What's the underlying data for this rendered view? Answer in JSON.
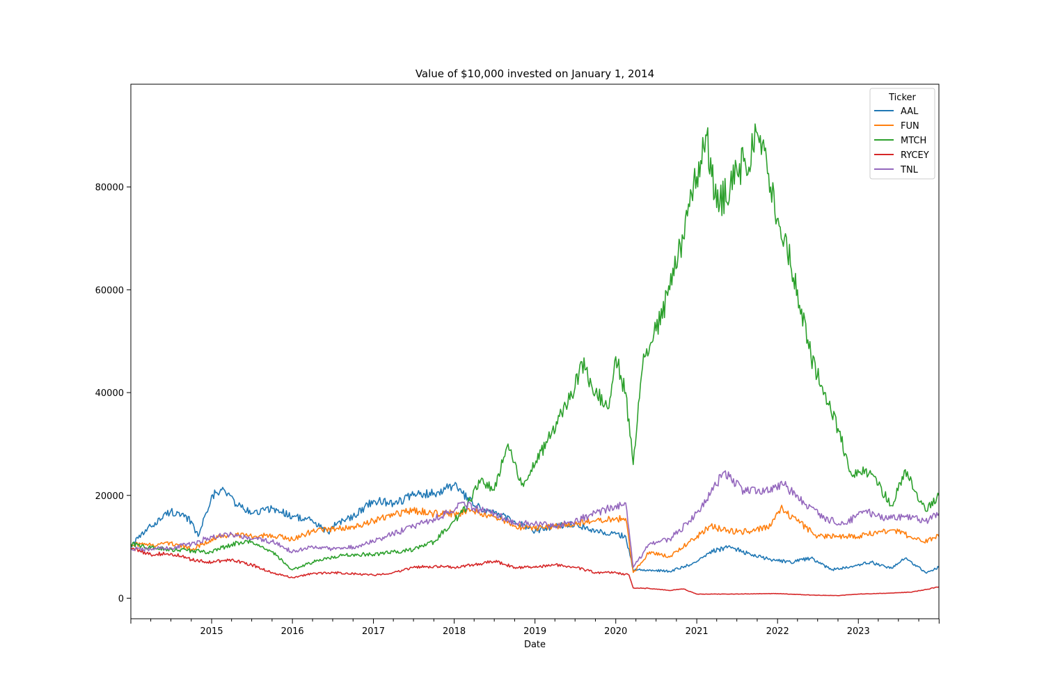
{
  "chart_data": {
    "type": "line",
    "title": "Value of $10,000 invested on January 1, 2014",
    "xlabel": "Date",
    "ylabel": "",
    "xlim": [
      "2014-01-01",
      "2023-12-31"
    ],
    "ylim": [
      -4000,
      100000
    ],
    "x_ticks": [
      "2015",
      "2016",
      "2017",
      "2018",
      "2019",
      "2020",
      "2021",
      "2022",
      "2023"
    ],
    "y_ticks": [
      0,
      20000,
      40000,
      60000,
      80000
    ],
    "grid": false,
    "legend": {
      "title": "Ticker",
      "position": "top-right"
    },
    "series": [
      {
        "name": "AAL",
        "color": "#1f77b4",
        "x": [
          "2014-01-01",
          "2014-04-01",
          "2014-07-01",
          "2014-10-01",
          "2014-11-01",
          "2015-01-01",
          "2015-03-01",
          "2015-05-01",
          "2015-07-01",
          "2015-10-01",
          "2016-01-01",
          "2016-04-01",
          "2016-06-15",
          "2016-07-01",
          "2016-10-01",
          "2017-01-01",
          "2017-04-01",
          "2017-07-01",
          "2017-10-01",
          "2018-01-01",
          "2018-04-01",
          "2018-07-01",
          "2018-10-01",
          "2019-01-01",
          "2019-04-01",
          "2019-07-01",
          "2019-10-01",
          "2020-01-01",
          "2020-02-15",
          "2020-03-20",
          "2020-06-01",
          "2020-09-01",
          "2020-12-01",
          "2021-03-01",
          "2021-06-01",
          "2021-09-01",
          "2021-12-01",
          "2022-03-01",
          "2022-06-01",
          "2022-09-01",
          "2022-12-01",
          "2023-03-01",
          "2023-06-01",
          "2023-08-01",
          "2023-10-31",
          "2023-12-31"
        ],
        "y": [
          10200,
          14000,
          17000,
          15000,
          12000,
          20000,
          21000,
          18000,
          16500,
          17500,
          16000,
          15000,
          12500,
          14000,
          16000,
          19000,
          18500,
          20000,
          20500,
          22000,
          18000,
          16500,
          15000,
          13000,
          14000,
          14500,
          13000,
          12500,
          12000,
          5500,
          5500,
          5200,
          6500,
          9000,
          10000,
          8500,
          7500,
          7000,
          7800,
          5500,
          6200,
          7000,
          5800,
          7800,
          5000,
          6000
        ]
      },
      {
        "name": "FUN",
        "color": "#ff7f0e",
        "x": [
          "2014-01-01",
          "2014-04-01",
          "2014-07-01",
          "2014-10-01",
          "2015-01-01",
          "2015-04-01",
          "2015-07-01",
          "2015-10-01",
          "2016-01-01",
          "2016-04-01",
          "2016-07-01",
          "2016-10-01",
          "2017-01-01",
          "2017-04-01",
          "2017-07-01",
          "2017-10-01",
          "2018-01-01",
          "2018-04-01",
          "2018-07-01",
          "2018-10-01",
          "2019-01-01",
          "2019-04-01",
          "2019-07-01",
          "2019-10-01",
          "2020-01-01",
          "2020-02-15",
          "2020-03-20",
          "2020-06-01",
          "2020-09-01",
          "2020-12-01",
          "2021-03-01",
          "2021-06-01",
          "2021-09-01",
          "2021-12-01",
          "2022-01-15",
          "2022-04-01",
          "2022-07-01",
          "2022-10-01",
          "2023-01-01",
          "2023-04-01",
          "2023-07-01",
          "2023-10-15",
          "2023-12-31"
        ],
        "y": [
          10500,
          10300,
          10800,
          9500,
          11500,
          12500,
          12000,
          12300,
          11500,
          13000,
          13500,
          14000,
          15000,
          16500,
          17000,
          16500,
          16500,
          16800,
          15800,
          14000,
          13500,
          14000,
          14500,
          15000,
          15500,
          15500,
          5000,
          9000,
          8000,
          11000,
          14000,
          13000,
          13000,
          14000,
          17500,
          15000,
          12000,
          12000,
          12000,
          13000,
          13000,
          11000,
          12000
        ]
      },
      {
        "name": "MTCH",
        "color": "#2ca02c",
        "x": [
          "2014-01-01",
          "2014-04-01",
          "2014-07-01",
          "2014-10-01",
          "2015-01-01",
          "2015-04-01",
          "2015-07-01",
          "2015-10-01",
          "2016-01-01",
          "2016-04-01",
          "2016-07-01",
          "2016-10-01",
          "2017-01-01",
          "2017-04-01",
          "2017-07-01",
          "2017-10-01",
          "2018-01-01",
          "2018-03-01",
          "2018-05-01",
          "2018-07-01",
          "2018-09-01",
          "2018-11-01",
          "2019-01-01",
          "2019-03-01",
          "2019-05-01",
          "2019-07-01",
          "2019-08-01",
          "2019-10-01",
          "2019-12-01",
          "2020-01-01",
          "2020-02-15",
          "2020-03-20",
          "2020-05-01",
          "2020-07-01",
          "2020-09-01",
          "2020-11-01",
          "2021-01-01",
          "2021-02-15",
          "2021-04-01",
          "2021-06-01",
          "2021-08-01",
          "2021-10-15",
          "2021-12-01",
          "2022-02-01",
          "2022-04-01",
          "2022-06-01",
          "2022-08-01",
          "2022-10-01",
          "2022-12-01",
          "2023-02-01",
          "2023-04-01",
          "2023-06-01",
          "2023-08-01",
          "2023-10-31",
          "2023-12-31"
        ],
        "y": [
          10500,
          9800,
          9500,
          9200,
          9000,
          10500,
          11000,
          9000,
          5500,
          7000,
          8000,
          8500,
          8500,
          9000,
          9500,
          11000,
          15000,
          18000,
          23000,
          21000,
          30000,
          22000,
          26000,
          31000,
          36000,
          41000,
          46000,
          40000,
          37000,
          47000,
          40000,
          26000,
          45000,
          52000,
          60000,
          70000,
          82000,
          90000,
          76000,
          80000,
          85000,
          90000,
          80000,
          70000,
          60000,
          47000,
          40000,
          33000,
          24000,
          25000,
          22000,
          18000,
          25000,
          17000,
          20000
        ]
      },
      {
        "name": "RYCEY",
        "color": "#d62728",
        "x": [
          "2014-01-01",
          "2014-04-01",
          "2014-07-01",
          "2014-10-01",
          "2015-01-01",
          "2015-04-01",
          "2015-07-01",
          "2015-10-01",
          "2016-01-01",
          "2016-04-01",
          "2016-07-01",
          "2016-10-01",
          "2017-01-01",
          "2017-04-01",
          "2017-07-01",
          "2017-10-01",
          "2018-01-01",
          "2018-04-01",
          "2018-07-01",
          "2018-10-01",
          "2019-01-01",
          "2019-04-01",
          "2019-07-01",
          "2019-10-01",
          "2020-01-01",
          "2020-03-01",
          "2020-03-20",
          "2020-06-01",
          "2020-09-01",
          "2020-11-01",
          "2021-01-01",
          "2021-06-01",
          "2022-01-01",
          "2022-06-01",
          "2022-10-01",
          "2023-01-01",
          "2023-06-01",
          "2023-09-01",
          "2023-12-31"
        ],
        "y": [
          9800,
          8500,
          8700,
          7500,
          7000,
          7500,
          6500,
          5000,
          4000,
          4800,
          5000,
          4800,
          4500,
          5000,
          6000,
          6200,
          6000,
          6500,
          7200,
          6000,
          6000,
          6500,
          6000,
          5000,
          5000,
          4500,
          2000,
          1900,
          1500,
          1800,
          800,
          800,
          900,
          600,
          500,
          800,
          1000,
          1200,
          2200
        ]
      },
      {
        "name": "TNL",
        "color": "#9467bd",
        "x": [
          "2014-01-01",
          "2014-04-01",
          "2014-07-01",
          "2014-10-01",
          "2015-01-01",
          "2015-04-01",
          "2015-07-01",
          "2015-10-01",
          "2016-01-01",
          "2016-04-01",
          "2016-07-01",
          "2016-10-01",
          "2017-01-01",
          "2017-04-01",
          "2017-07-01",
          "2017-10-01",
          "2018-01-01",
          "2018-02-01",
          "2018-04-01",
          "2018-07-01",
          "2018-10-01",
          "2019-01-01",
          "2019-04-01",
          "2019-07-01",
          "2019-10-01",
          "2020-01-01",
          "2020-02-15",
          "2020-03-20",
          "2020-06-01",
          "2020-09-01",
          "2020-12-01",
          "2021-03-01",
          "2021-05-01",
          "2021-08-01",
          "2021-11-01",
          "2022-02-01",
          "2022-05-01",
          "2022-08-01",
          "2022-11-01",
          "2023-02-01",
          "2023-05-01",
          "2023-08-01",
          "2023-10-31",
          "2023-12-31"
        ],
        "y": [
          9600,
          9500,
          9800,
          10500,
          12000,
          12500,
          11500,
          11000,
          9000,
          10000,
          9500,
          10000,
          11000,
          12500,
          14000,
          15500,
          17000,
          18500,
          17500,
          16500,
          14500,
          14500,
          14000,
          15000,
          16500,
          18000,
          18500,
          6000,
          10500,
          11500,
          15000,
          20000,
          24500,
          21000,
          20500,
          22000,
          18500,
          15500,
          14500,
          17000,
          15500,
          16000,
          15000,
          16500
        ]
      }
    ]
  }
}
